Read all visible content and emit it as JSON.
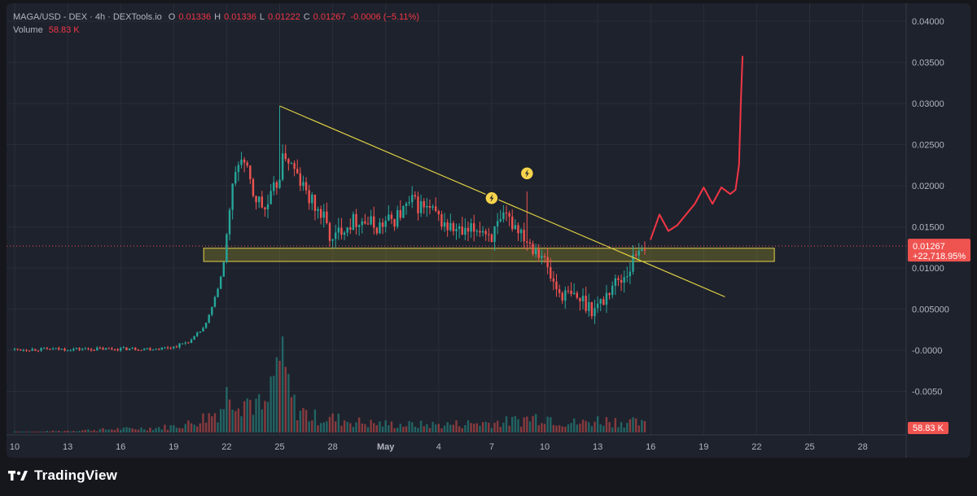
{
  "header": {
    "symbol": "MAGA/USD - DEX · 4h · DEXTools.io",
    "o_label": "O",
    "o_value": "0.01336",
    "h_label": "H",
    "h_value": "0.01336",
    "l_label": "L",
    "l_value": "0.01222",
    "c_label": "C",
    "c_value": "0.01267",
    "change": "-0.0006 (−5.11%)",
    "volume_label": "Volume",
    "volume_value": "58.83 K"
  },
  "price_tag": {
    "price": "0.01267",
    "percent": "+22,718.95%"
  },
  "volume_tag": "58.83 K",
  "branding": {
    "name": "TradingView"
  },
  "colors": {
    "up": "#26a69a",
    "down": "#ef5350",
    "background": "#1e222d",
    "trendline": "#e0d043",
    "zone": "#b7ab24",
    "projection": "#f23645"
  },
  "chart_data": {
    "type": "candlestick",
    "y_axis": {
      "range": [
        -0.0095,
        0.041
      ],
      "ticks": [
        "0.04000",
        "0.03500",
        "0.03000",
        "0.02500",
        "0.02000",
        "0.01500",
        "0.01000",
        "0.005000",
        "-0.0000",
        "-0.0050"
      ],
      "tick_values": [
        0.04,
        0.035,
        0.03,
        0.025,
        0.02,
        0.015,
        0.01,
        0.005,
        0.0,
        -0.005
      ]
    },
    "x_axis": {
      "ticks": [
        "10",
        "13",
        "16",
        "19",
        "22",
        "25",
        "28",
        "May",
        "4",
        "7",
        "10",
        "13",
        "16",
        "19",
        "22",
        "25",
        "28"
      ],
      "tick_days": [
        0,
        3,
        6,
        9,
        12,
        15,
        18,
        21,
        24,
        27,
        30,
        33,
        36,
        39,
        42,
        45,
        48
      ]
    },
    "last_close": 0.01267,
    "close_series": [
      [
        0,
        0.0001
      ],
      [
        8.0,
        0.0002
      ],
      [
        9.0,
        0.0004
      ],
      [
        10.0,
        0.0012
      ],
      [
        10.8,
        0.003
      ],
      [
        11.3,
        0.006
      ],
      [
        11.8,
        0.01
      ],
      [
        12.2,
        0.018
      ],
      [
        12.8,
        0.024
      ],
      [
        13.5,
        0.019
      ],
      [
        14.2,
        0.017
      ],
      [
        14.8,
        0.02
      ],
      [
        15.3,
        0.024
      ],
      [
        16.0,
        0.021
      ],
      [
        16.8,
        0.018
      ],
      [
        17.5,
        0.016
      ],
      [
        18.0,
        0.013
      ],
      [
        18.5,
        0.015
      ],
      [
        19.5,
        0.016
      ],
      [
        20.5,
        0.015
      ],
      [
        21.5,
        0.016
      ],
      [
        22.5,
        0.018
      ],
      [
        23.5,
        0.017
      ],
      [
        24.5,
        0.015
      ],
      [
        25.5,
        0.014
      ],
      [
        26.3,
        0.015
      ],
      [
        27.0,
        0.014
      ],
      [
        27.8,
        0.016
      ],
      [
        28.5,
        0.015
      ],
      [
        29.2,
        0.013
      ],
      [
        29.8,
        0.012
      ],
      [
        30.3,
        0.009
      ],
      [
        30.8,
        0.007
      ],
      [
        31.5,
        0.0065
      ],
      [
        32.2,
        0.006
      ],
      [
        32.8,
        0.005
      ],
      [
        33.3,
        0.006
      ],
      [
        33.8,
        0.008
      ],
      [
        34.3,
        0.0085
      ],
      [
        34.8,
        0.01
      ],
      [
        35.2,
        0.012
      ],
      [
        35.5,
        0.013
      ],
      [
        35.8,
        0.01267
      ]
    ],
    "high_marks": [
      [
        15.0,
        0.0297
      ],
      [
        29.0,
        0.0193
      ]
    ],
    "volume_series": [
      [
        0,
        0
      ],
      [
        8.0,
        0.06
      ],
      [
        9.0,
        0.08
      ],
      [
        10.0,
        0.12
      ],
      [
        10.8,
        0.2
      ],
      [
        11.3,
        0.25
      ],
      [
        11.8,
        0.35
      ],
      [
        12.2,
        0.6
      ],
      [
        12.8,
        0.45
      ],
      [
        13.5,
        0.4
      ],
      [
        14.2,
        0.28
      ],
      [
        15.0,
        1.0
      ],
      [
        15.8,
        0.35
      ],
      [
        16.8,
        0.2
      ],
      [
        18.0,
        0.18
      ],
      [
        20.0,
        0.12
      ],
      [
        22.0,
        0.1
      ],
      [
        24.0,
        0.1
      ],
      [
        26.0,
        0.12
      ],
      [
        28.0,
        0.14
      ],
      [
        29.0,
        0.18
      ],
      [
        30.0,
        0.22
      ],
      [
        31.0,
        0.14
      ],
      [
        32.0,
        0.12
      ],
      [
        33.0,
        0.16
      ],
      [
        34.0,
        0.15
      ],
      [
        35.0,
        0.13
      ],
      [
        35.8,
        0.1
      ]
    ],
    "annotations": {
      "trendline": [
        [
          15.0,
          0.0297
        ],
        [
          40.2,
          0.0065
        ]
      ],
      "support_zone": {
        "x": [
          10.7,
          43.0
        ],
        "y": [
          0.0108,
          0.0124
        ]
      },
      "projection": [
        [
          36.0,
          0.0135
        ],
        [
          36.5,
          0.0165
        ],
        [
          37.0,
          0.0145
        ],
        [
          37.5,
          0.0152
        ],
        [
          38.0,
          0.0165
        ],
        [
          38.5,
          0.0178
        ],
        [
          39.0,
          0.0198
        ],
        [
          39.5,
          0.0178
        ],
        [
          40.0,
          0.0198
        ],
        [
          40.5,
          0.019
        ],
        [
          40.8,
          0.0195
        ],
        [
          41.0,
          0.0225
        ],
        [
          41.1,
          0.03
        ],
        [
          41.2,
          0.0357
        ]
      ],
      "signal_markers": [
        [
          27.0,
          0.0185
        ],
        [
          29.0,
          0.0215
        ]
      ]
    }
  }
}
